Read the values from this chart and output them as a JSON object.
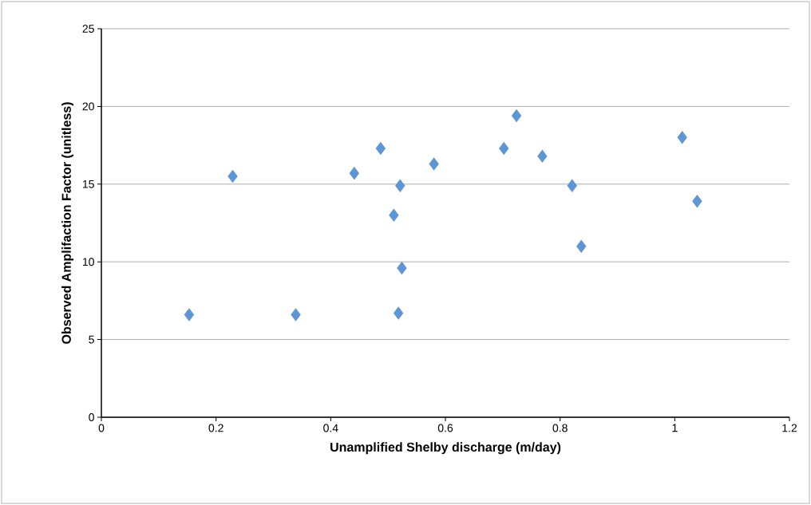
{
  "chart_data": {
    "type": "scatter",
    "xlabel": "Unamplified Shelby discharge (m/day)",
    "ylabel": "Observed Amplifaction Factor (unitless)",
    "x": [
      0.153,
      0.229,
      0.339,
      0.441,
      0.487,
      0.521,
      0.51,
      0.524,
      0.518,
      0.58,
      0.702,
      0.724,
      0.769,
      0.821,
      0.837,
      1.013,
      1.039
    ],
    "values": [
      6.6,
      15.5,
      6.6,
      15.7,
      17.3,
      14.9,
      13.0,
      9.6,
      6.7,
      16.3,
      17.3,
      19.4,
      16.8,
      14.9,
      11.0,
      18.0,
      13.9
    ],
    "color": "#5b96d6",
    "marker": "diamond",
    "grid": "y",
    "xlim": [
      0,
      1.2
    ],
    "xticks": [
      0,
      0.2,
      0.4,
      0.6,
      0.8,
      1,
      1.2
    ],
    "ylim": [
      0,
      25
    ],
    "yticks": [
      0,
      5,
      10,
      15,
      20,
      25
    ]
  }
}
